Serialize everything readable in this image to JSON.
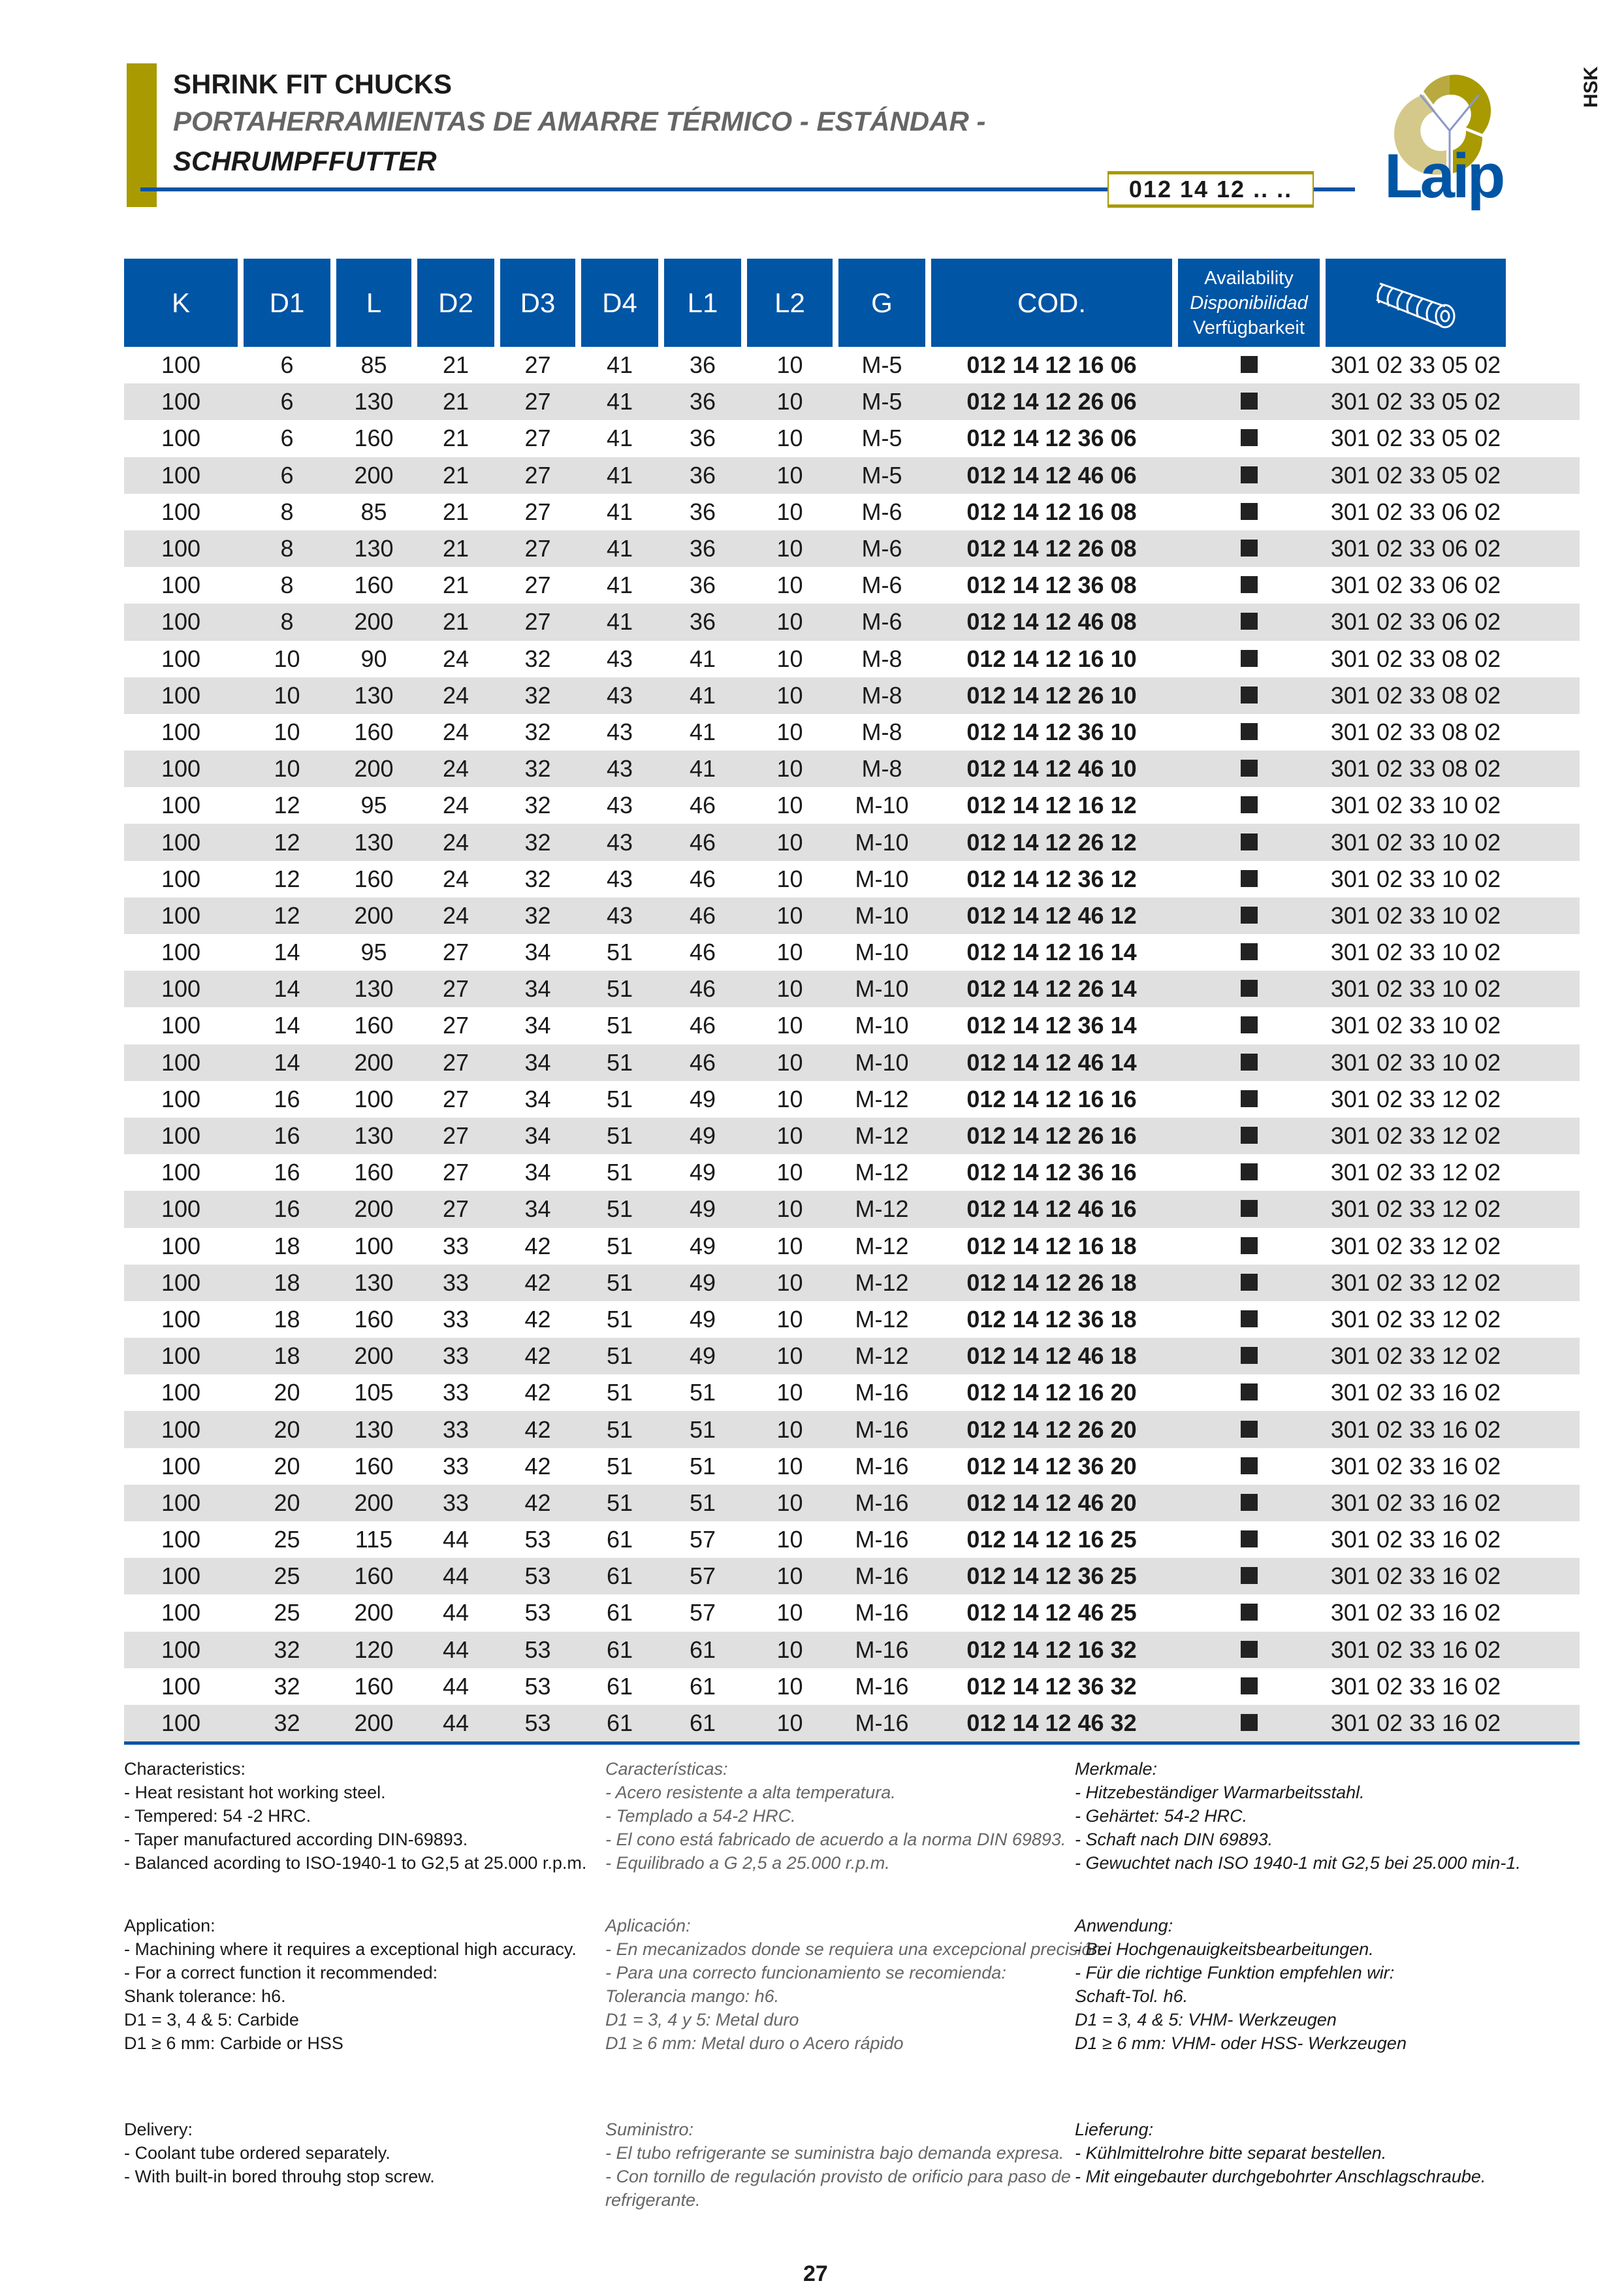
{
  "header": {
    "title_en": "SHRINK FIT CHUCKS",
    "title_es": "PORTAHERRAMIENTAS DE AMARRE TÉRMICO - ESTÁNDAR -",
    "title_de": "SCHRUMPFFUTTER",
    "code": "012 14 12 .. ..",
    "side_tab": "HSK",
    "logo_text": "Laip"
  },
  "colors": {
    "blue": "#0055a5",
    "gold": "#a89a00",
    "stripe": "#e0e0e0"
  },
  "table": {
    "headers": [
      "K",
      "D1",
      "L",
      "D2",
      "D3",
      "D4",
      "L1",
      "L2",
      "G",
      "COD."
    ],
    "availability": [
      "Availability",
      "Disponibilidad",
      "Verfügbarkeit"
    ],
    "last_header_icon": "coolant-tube-icon",
    "rows": [
      [
        "100",
        "6",
        "85",
        "21",
        "27",
        "41",
        "36",
        "10",
        "M-5",
        "012 14 12 16 06",
        "301 02 33 05 02"
      ],
      [
        "100",
        "6",
        "130",
        "21",
        "27",
        "41",
        "36",
        "10",
        "M-5",
        "012 14 12 26 06",
        "301 02 33 05 02"
      ],
      [
        "100",
        "6",
        "160",
        "21",
        "27",
        "41",
        "36",
        "10",
        "M-5",
        "012 14 12 36 06",
        "301 02 33 05 02"
      ],
      [
        "100",
        "6",
        "200",
        "21",
        "27",
        "41",
        "36",
        "10",
        "M-5",
        "012 14 12 46 06",
        "301 02 33 05 02"
      ],
      [
        "100",
        "8",
        "85",
        "21",
        "27",
        "41",
        "36",
        "10",
        "M-6",
        "012 14 12 16 08",
        "301 02 33 06 02"
      ],
      [
        "100",
        "8",
        "130",
        "21",
        "27",
        "41",
        "36",
        "10",
        "M-6",
        "012 14 12 26 08",
        "301 02 33 06 02"
      ],
      [
        "100",
        "8",
        "160",
        "21",
        "27",
        "41",
        "36",
        "10",
        "M-6",
        "012 14 12 36 08",
        "301 02 33 06 02"
      ],
      [
        "100",
        "8",
        "200",
        "21",
        "27",
        "41",
        "36",
        "10",
        "M-6",
        "012 14 12 46 08",
        "301 02 33 06 02"
      ],
      [
        "100",
        "10",
        "90",
        "24",
        "32",
        "43",
        "41",
        "10",
        "M-8",
        "012 14 12 16 10",
        "301 02 33 08 02"
      ],
      [
        "100",
        "10",
        "130",
        "24",
        "32",
        "43",
        "41",
        "10",
        "M-8",
        "012 14 12 26 10",
        "301 02 33 08 02"
      ],
      [
        "100",
        "10",
        "160",
        "24",
        "32",
        "43",
        "41",
        "10",
        "M-8",
        "012 14 12 36 10",
        "301 02 33 08 02"
      ],
      [
        "100",
        "10",
        "200",
        "24",
        "32",
        "43",
        "41",
        "10",
        "M-8",
        "012 14 12 46 10",
        "301 02 33 08 02"
      ],
      [
        "100",
        "12",
        "95",
        "24",
        "32",
        "43",
        "46",
        "10",
        "M-10",
        "012 14 12 16 12",
        "301 02 33 10 02"
      ],
      [
        "100",
        "12",
        "130",
        "24",
        "32",
        "43",
        "46",
        "10",
        "M-10",
        "012 14 12 26 12",
        "301 02 33 10 02"
      ],
      [
        "100",
        "12",
        "160",
        "24",
        "32",
        "43",
        "46",
        "10",
        "M-10",
        "012 14 12 36 12",
        "301 02 33 10 02"
      ],
      [
        "100",
        "12",
        "200",
        "24",
        "32",
        "43",
        "46",
        "10",
        "M-10",
        "012 14 12 46 12",
        "301 02 33 10 02"
      ],
      [
        "100",
        "14",
        "95",
        "27",
        "34",
        "51",
        "46",
        "10",
        "M-10",
        "012 14 12 16 14",
        "301 02 33 10 02"
      ],
      [
        "100",
        "14",
        "130",
        "27",
        "34",
        "51",
        "46",
        "10",
        "M-10",
        "012 14 12 26 14",
        "301 02 33 10 02"
      ],
      [
        "100",
        "14",
        "160",
        "27",
        "34",
        "51",
        "46",
        "10",
        "M-10",
        "012 14 12 36 14",
        "301 02 33 10 02"
      ],
      [
        "100",
        "14",
        "200",
        "27",
        "34",
        "51",
        "46",
        "10",
        "M-10",
        "012 14 12 46 14",
        "301 02 33 10 02"
      ],
      [
        "100",
        "16",
        "100",
        "27",
        "34",
        "51",
        "49",
        "10",
        "M-12",
        "012 14 12 16 16",
        "301 02 33 12 02"
      ],
      [
        "100",
        "16",
        "130",
        "27",
        "34",
        "51",
        "49",
        "10",
        "M-12",
        "012 14 12 26 16",
        "301 02 33 12 02"
      ],
      [
        "100",
        "16",
        "160",
        "27",
        "34",
        "51",
        "49",
        "10",
        "M-12",
        "012 14 12 36 16",
        "301 02 33 12 02"
      ],
      [
        "100",
        "16",
        "200",
        "27",
        "34",
        "51",
        "49",
        "10",
        "M-12",
        "012 14 12 46 16",
        "301 02 33 12 02"
      ],
      [
        "100",
        "18",
        "100",
        "33",
        "42",
        "51",
        "49",
        "10",
        "M-12",
        "012 14 12 16 18",
        "301 02 33 12 02"
      ],
      [
        "100",
        "18",
        "130",
        "33",
        "42",
        "51",
        "49",
        "10",
        "M-12",
        "012 14 12 26 18",
        "301 02 33 12 02"
      ],
      [
        "100",
        "18",
        "160",
        "33",
        "42",
        "51",
        "49",
        "10",
        "M-12",
        "012 14 12 36 18",
        "301 02 33 12 02"
      ],
      [
        "100",
        "18",
        "200",
        "33",
        "42",
        "51",
        "49",
        "10",
        "M-12",
        "012 14 12 46 18",
        "301 02 33 12 02"
      ],
      [
        "100",
        "20",
        "105",
        "33",
        "42",
        "51",
        "51",
        "10",
        "M-16",
        "012 14 12 16 20",
        "301 02 33 16 02"
      ],
      [
        "100",
        "20",
        "130",
        "33",
        "42",
        "51",
        "51",
        "10",
        "M-16",
        "012 14 12 26 20",
        "301 02 33 16 02"
      ],
      [
        "100",
        "20",
        "160",
        "33",
        "42",
        "51",
        "51",
        "10",
        "M-16",
        "012 14 12 36 20",
        "301 02 33 16 02"
      ],
      [
        "100",
        "20",
        "200",
        "33",
        "42",
        "51",
        "51",
        "10",
        "M-16",
        "012 14 12 46 20",
        "301 02 33 16 02"
      ],
      [
        "100",
        "25",
        "115",
        "44",
        "53",
        "61",
        "57",
        "10",
        "M-16",
        "012 14 12 16 25",
        "301 02 33 16 02"
      ],
      [
        "100",
        "25",
        "160",
        "44",
        "53",
        "61",
        "57",
        "10",
        "M-16",
        "012 14 12 36 25",
        "301 02 33 16 02"
      ],
      [
        "100",
        "25",
        "200",
        "44",
        "53",
        "61",
        "57",
        "10",
        "M-16",
        "012 14 12 46 25",
        "301 02 33 16 02"
      ],
      [
        "100",
        "32",
        "120",
        "44",
        "53",
        "61",
        "61",
        "10",
        "M-16",
        "012 14 12 16 32",
        "301 02 33 16 02"
      ],
      [
        "100",
        "32",
        "160",
        "44",
        "53",
        "61",
        "61",
        "10",
        "M-16",
        "012 14 12 36 32",
        "301 02 33 16 02"
      ],
      [
        "100",
        "32",
        "200",
        "44",
        "53",
        "61",
        "61",
        "10",
        "M-16",
        "012 14 12 46 32",
        "301 02 33 16 02"
      ]
    ]
  },
  "notes": {
    "en": [
      [
        "Characteristics:",
        "- Heat resistant hot working steel.",
        "- Tempered: 54 -2 HRC.",
        "- Taper manufactured according DIN-69893.",
        "- Balanced acording to ISO-1940-1 to G2,5 at 25.000 r.p.m."
      ],
      [
        "Application:",
        "- Machining where it requires a exceptional high accuracy.",
        "- For a correct function it recommended:",
        "Shank tolerance: h6.",
        "D1 = 3, 4 & 5:  Carbide",
        "D1 ≥ 6 mm:  Carbide or HSS"
      ],
      [
        "Delivery:",
        "- Coolant tube ordered separately.",
        "- With built-in bored throuhg stop screw."
      ]
    ],
    "es": [
      [
        "Características:",
        "- Acero resistente a alta temperatura.",
        "- Templado a 54-2 HRC.",
        "- El cono  está fabricado de acuerdo a la norma DIN 69893.",
        "- Equilibrado a G 2,5 a 25.000 r.p.m."
      ],
      [
        "Aplicación:",
        "- En mecanizados donde se requiera una excepcional precisión.",
        "- Para una correcto funcionamiento se recomienda:",
        "Tolerancia mango: h6.",
        "D1 = 3, 4 y 5:  Metal duro",
        "D1 ≥ 6 mm:  Metal duro o Acero rápido"
      ],
      [
        "Suministro:",
        "- El tubo refrigerante se suministra bajo demanda expresa.",
        "- Con tornillo de regulación provisto de orificio para paso de",
        "refrigerante."
      ]
    ],
    "de": [
      [
        "Merkmale:",
        "- Hitzebeständiger Warmarbeitsstahl.",
        "- Gehärtet: 54-2 HRC.",
        "- Schaft nach DIN 69893.",
        "- Gewuchtet nach ISO 1940-1 mit G2,5 bei 25.000 min-1."
      ],
      [
        "Anwendung:",
        "- Bei Hochgenauigkeitsbearbeitungen.",
        "- Für die richtige Funktion empfehlen wir:",
        "Schaft-Tol. h6.",
        "D1 = 3, 4 & 5:  VHM- Werkzeugen",
        "D1 ≥ 6 mm:  VHM- oder HSS- Werkzeugen"
      ],
      [
        "Lieferung:",
        "- Kühlmittelrohre bitte separat bestellen.",
        "- Mit eingebauter durchgebohrter Anschlagschraube."
      ]
    ]
  },
  "page_number": "27"
}
